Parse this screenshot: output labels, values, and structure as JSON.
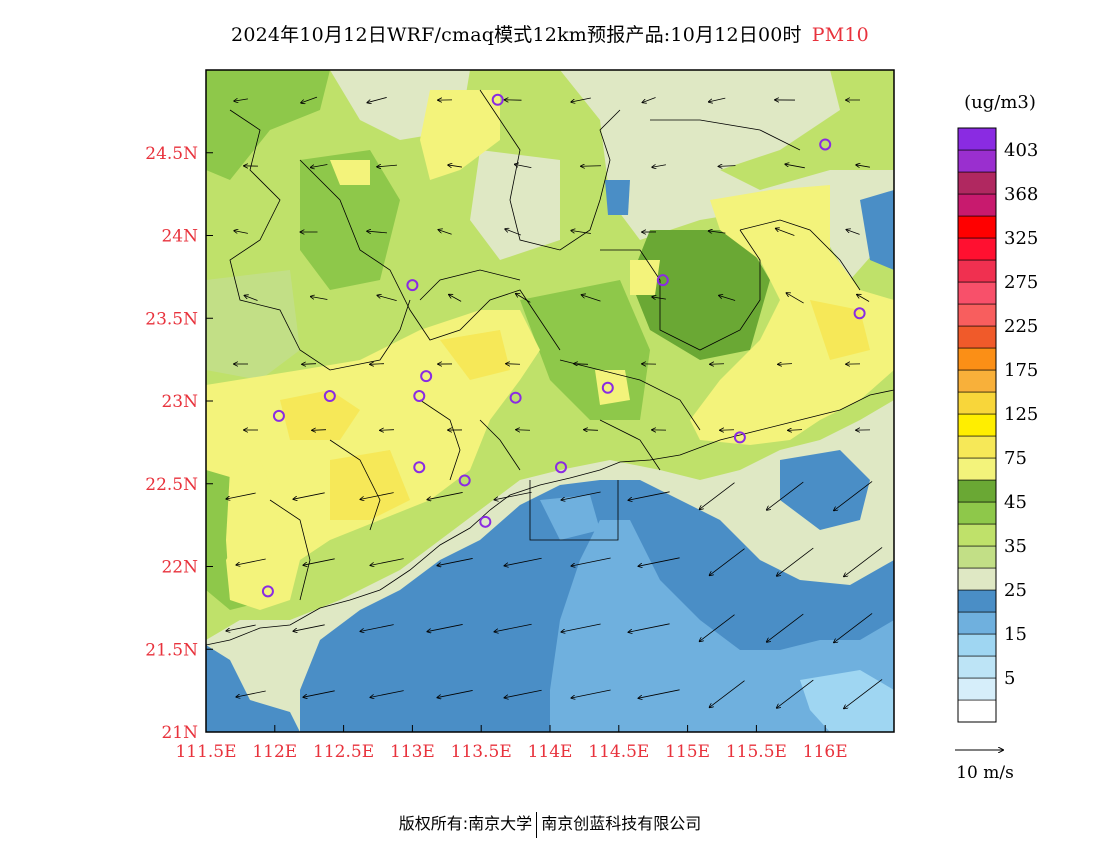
{
  "title": {
    "main": "2024年10月12日WRF/cmaq模式12km预报产品:10月12日00时",
    "pollutant": "PM10"
  },
  "map": {
    "lon_range": [
      111.5,
      116.5
    ],
    "lat_range": [
      21,
      25
    ],
    "x_ticks": [
      {
        "value": 111.5,
        "label": "111.5E"
      },
      {
        "value": 112,
        "label": "112E"
      },
      {
        "value": 112.5,
        "label": "112.5E"
      },
      {
        "value": 113,
        "label": "113E"
      },
      {
        "value": 113.5,
        "label": "113.5E"
      },
      {
        "value": 114,
        "label": "114E"
      },
      {
        "value": 114.5,
        "label": "114.5E"
      },
      {
        "value": 115,
        "label": "115E"
      },
      {
        "value": 115.5,
        "label": "115.5E"
      },
      {
        "value": 116,
        "label": "116E"
      }
    ],
    "y_ticks": [
      {
        "value": 21,
        "label": "21N"
      },
      {
        "value": 21.5,
        "label": "21.5N"
      },
      {
        "value": 22,
        "label": "22N"
      },
      {
        "value": 22.5,
        "label": "22.5N"
      },
      {
        "value": 23,
        "label": "23N"
      },
      {
        "value": 23.5,
        "label": "23.5N"
      },
      {
        "value": 24,
        "label": "24N"
      },
      {
        "value": 24.5,
        "label": "24.5N"
      }
    ],
    "stations": [
      {
        "lon": 113.62,
        "lat": 24.82
      },
      {
        "lon": 116.0,
        "lat": 24.55
      },
      {
        "lon": 113.0,
        "lat": 23.7
      },
      {
        "lon": 114.82,
        "lat": 23.73
      },
      {
        "lon": 116.25,
        "lat": 23.53
      },
      {
        "lon": 112.4,
        "lat": 23.03
      },
      {
        "lon": 113.1,
        "lat": 23.15
      },
      {
        "lon": 113.05,
        "lat": 23.03
      },
      {
        "lon": 113.75,
        "lat": 23.02
      },
      {
        "lon": 114.42,
        "lat": 23.08
      },
      {
        "lon": 112.03,
        "lat": 22.91
      },
      {
        "lon": 115.38,
        "lat": 22.78
      },
      {
        "lon": 113.05,
        "lat": 22.6
      },
      {
        "lon": 114.08,
        "lat": 22.6
      },
      {
        "lon": 113.38,
        "lat": 22.52
      },
      {
        "lon": 113.53,
        "lat": 22.27
      },
      {
        "lon": 111.95,
        "lat": 21.85
      }
    ]
  },
  "colorbar": {
    "unit": "(ug/m3)",
    "levels": [
      {
        "label": "",
        "color": "#ffffff"
      },
      {
        "label": "5",
        "color": "#d6eefa"
      },
      {
        "label": "",
        "color": "#bde4f6"
      },
      {
        "label": "15",
        "color": "#9fd6f2"
      },
      {
        "label": "",
        "color": "#6fb0de"
      },
      {
        "label": "25",
        "color": "#4a8ec6"
      },
      {
        "label": "",
        "color": "#dfe8c4"
      },
      {
        "label": "35",
        "color": "#c2df86"
      },
      {
        "label": "",
        "color": "#bfe16a"
      },
      {
        "label": "45",
        "color": "#8ec84a"
      },
      {
        "label": "",
        "color": "#6aa834"
      },
      {
        "label": "75",
        "color": "#f3f37b"
      },
      {
        "label": "",
        "color": "#f6e858"
      },
      {
        "label": "125",
        "color": "#ffee00"
      },
      {
        "label": "",
        "color": "#f8d63a"
      },
      {
        "label": "175",
        "color": "#f8b03a"
      },
      {
        "label": "",
        "color": "#fb8f16"
      },
      {
        "label": "225",
        "color": "#f05a2a"
      },
      {
        "label": "",
        "color": "#f85e5e"
      },
      {
        "label": "275",
        "color": "#f8506a"
      },
      {
        "label": "",
        "color": "#f03050"
      },
      {
        "label": "325",
        "color": "#ff1030"
      },
      {
        "label": "",
        "color": "#ff0000"
      },
      {
        "label": "368",
        "color": "#c81a6e"
      },
      {
        "label": "",
        "color": "#b02860"
      },
      {
        "label": "403",
        "color": "#9a2fcf"
      },
      {
        "label": "",
        "color": "#8a2be2"
      }
    ]
  },
  "wind_reference": {
    "label": "10 m/s"
  },
  "footer": {
    "left": "版权所有:南京大学",
    "right": "南京创蓝科技有限公司"
  }
}
